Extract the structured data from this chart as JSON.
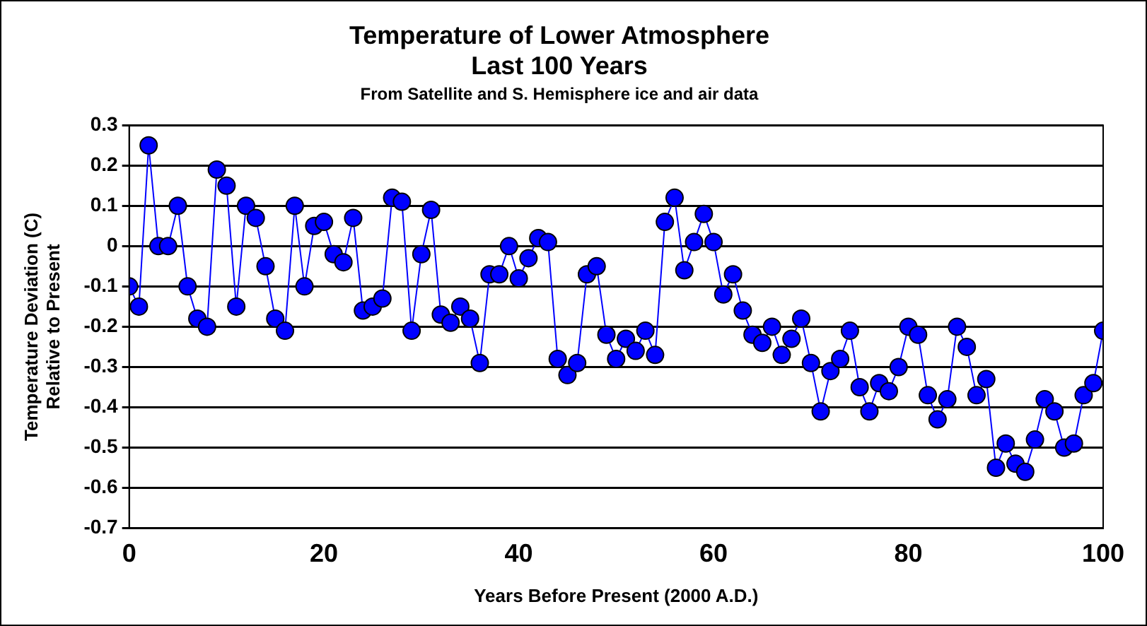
{
  "chart_data": {
    "type": "line",
    "title": "Temperature of Lower Atmosphere\nLast 100 Years",
    "subtitle": "From Satellite and S. Hemisphere ice and air data",
    "xlabel": "Years Before Present (2000 A.D.)",
    "ylabel": "Temperature Deviation (C)\nRelative to Present",
    "x": [
      0,
      1,
      2,
      3,
      4,
      5,
      6,
      7,
      8,
      9,
      10,
      11,
      12,
      13,
      14,
      15,
      16,
      17,
      18,
      19,
      20,
      21,
      22,
      23,
      24,
      25,
      26,
      27,
      28,
      29,
      30,
      31,
      32,
      33,
      34,
      35,
      36,
      37,
      38,
      39,
      40,
      41,
      42,
      43,
      44,
      45,
      46,
      47,
      48,
      49,
      50,
      51,
      52,
      53,
      54,
      55,
      56,
      57,
      58,
      59,
      60,
      61,
      62,
      63,
      64,
      65,
      66,
      67,
      68,
      69,
      70,
      71,
      72,
      73,
      74,
      75,
      76,
      77,
      78,
      79,
      80,
      81,
      82,
      83,
      84,
      85,
      86,
      87,
      88,
      89,
      90,
      91,
      92,
      93,
      94,
      95,
      96,
      97,
      98,
      99,
      100
    ],
    "series": [
      {
        "color": "#0000ff",
        "values": [
          -0.1,
          -0.15,
          0.25,
          0.0,
          0.0,
          0.1,
          -0.1,
          -0.18,
          -0.2,
          0.19,
          0.15,
          -0.15,
          0.1,
          0.07,
          -0.05,
          -0.18,
          -0.21,
          0.1,
          -0.1,
          0.05,
          0.06,
          -0.02,
          -0.04,
          0.07,
          -0.16,
          -0.15,
          -0.13,
          0.12,
          0.11,
          -0.21,
          -0.02,
          0.09,
          -0.17,
          -0.19,
          -0.15,
          -0.18,
          -0.29,
          -0.07,
          -0.07,
          0.0,
          -0.08,
          -0.03,
          0.02,
          0.01,
          -0.28,
          -0.32,
          -0.29,
          -0.07,
          -0.05,
          -0.22,
          -0.28,
          -0.23,
          -0.26,
          -0.21,
          -0.27,
          0.06,
          0.12,
          -0.06,
          0.01,
          0.08,
          0.01,
          -0.12,
          -0.07,
          -0.16,
          -0.22,
          -0.24,
          -0.2,
          -0.27,
          -0.23,
          -0.18,
          -0.29,
          -0.41,
          -0.31,
          -0.28,
          -0.21,
          -0.35,
          -0.41,
          -0.34,
          -0.36,
          -0.3,
          -0.2,
          -0.22,
          -0.37,
          -0.43,
          -0.38,
          -0.2,
          -0.25,
          -0.37,
          -0.33,
          -0.55,
          -0.49,
          -0.54,
          -0.56,
          -0.48,
          -0.38,
          -0.41,
          -0.5,
          -0.49,
          -0.37,
          -0.34,
          -0.21
        ]
      }
    ],
    "xlim": [
      0,
      100
    ],
    "xticks": [
      0,
      20,
      40,
      60,
      80,
      100
    ],
    "ylim": [
      -0.7,
      0.3
    ],
    "yticks": [
      0.3,
      0.2,
      0.1,
      0,
      -0.1,
      -0.2,
      -0.3,
      -0.4,
      -0.5,
      -0.6,
      -0.7
    ],
    "grid": "y",
    "legend": false,
    "marker": "circle",
    "line_style": "solid"
  }
}
